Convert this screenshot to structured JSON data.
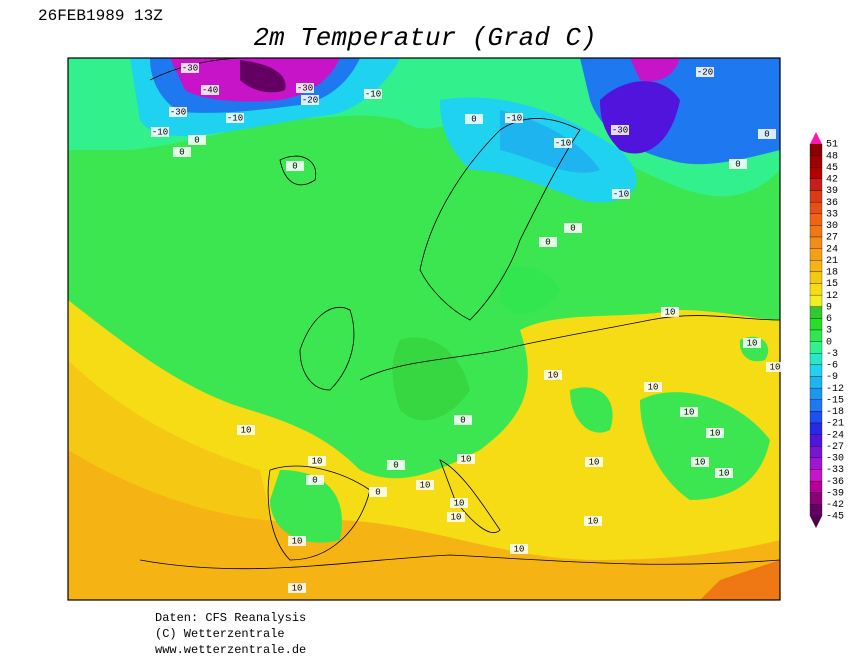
{
  "header": {
    "date": "26FEB1989 13Z",
    "title": "2m Temperatur (Grad C)"
  },
  "footer": {
    "lines": [
      "Daten: CFS Reanalysis",
      "(C) Wetterzentrale",
      "www.wetterzentrale.de"
    ]
  },
  "colorbar": {
    "ticks": [
      51,
      48,
      45,
      42,
      39,
      36,
      33,
      30,
      27,
      24,
      21,
      18,
      15,
      12,
      9,
      6,
      3,
      0,
      -3,
      -6,
      -9,
      -12,
      -15,
      -18,
      -21,
      -24,
      -27,
      -30,
      -33,
      -36,
      -39,
      -42,
      -45
    ],
    "colors": [
      "#8b0000",
      "#a00000",
      "#b40000",
      "#c81e1e",
      "#dc3c14",
      "#e65014",
      "#f06414",
      "#f07814",
      "#f58c14",
      "#f5a014",
      "#f5b414",
      "#f5c814",
      "#f5dc14",
      "#f0f01e",
      "#32c832",
      "#28dc28",
      "#32e650",
      "#32f08c",
      "#28e6c8",
      "#1ed2f0",
      "#1eb4f0",
      "#1e96f0",
      "#1e78f0",
      "#1e50f0",
      "#2828e6",
      "#5014dc",
      "#7814d2",
      "#a014d2",
      "#c814c8",
      "#b40096",
      "#8c0078",
      "#640064"
    ],
    "over_color": "#ff14b4",
    "under_color": "#500050"
  },
  "contour_labels": [
    "-30",
    "-40",
    "-30",
    "-10",
    "-10",
    "0",
    "0",
    "-30",
    "-20",
    "-10",
    "-20",
    "-30",
    "-10",
    "-10",
    "0",
    "0",
    "0",
    "-10",
    "0",
    "0",
    "0",
    "10",
    "10",
    "10",
    "10",
    "10",
    "10",
    "10",
    "10",
    "0",
    "0",
    "0",
    "10",
    "10",
    "10",
    "10",
    "10",
    "10",
    "0",
    "10",
    "10",
    "10",
    "10",
    "10",
    "10"
  ]
}
